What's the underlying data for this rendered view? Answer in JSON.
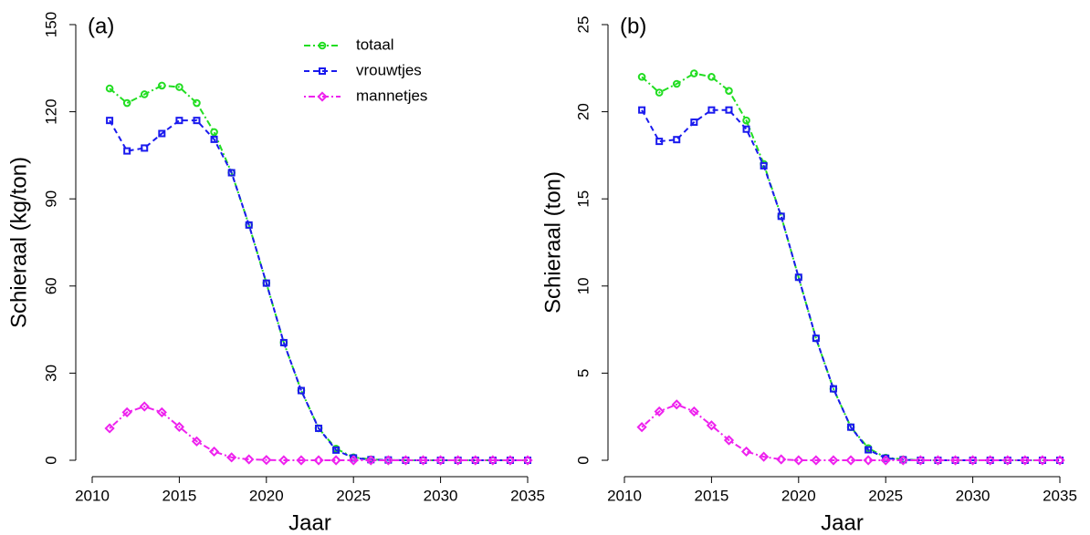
{
  "chart_data": [
    {
      "type": "line",
      "annotation": "(a)",
      "xlabel": "Jaar",
      "ylabel": "Schieraal (kg/ton)",
      "x": [
        2011,
        2012,
        2013,
        2014,
        2015,
        2016,
        2017,
        2018,
        2019,
        2020,
        2021,
        2022,
        2023,
        2024,
        2025,
        2026,
        2027,
        2028,
        2029,
        2030,
        2031,
        2032,
        2033,
        2034,
        2035
      ],
      "xlim": [
        2010,
        2035
      ],
      "xticks": [
        2010,
        2015,
        2020,
        2025,
        2030,
        2035
      ],
      "ylim": [
        0,
        150
      ],
      "yticks": [
        0,
        30,
        60,
        90,
        120,
        150
      ],
      "legend": true,
      "series": [
        {
          "name": "totaal",
          "color": "#22dd22",
          "marker": "circle",
          "dash": "7 3 2 3",
          "values": [
            128,
            123,
            126,
            129,
            128.5,
            123,
            113,
            99,
            81,
            61,
            40.5,
            24,
            11,
            4,
            1,
            0.3,
            0.1,
            0,
            0,
            0,
            0,
            0,
            0,
            0,
            0
          ]
        },
        {
          "name": "vrouwtjes",
          "color": "#1a1aee",
          "marker": "square",
          "dash": "6 4",
          "values": [
            117,
            106.5,
            107.5,
            112.5,
            117,
            117,
            110.5,
            99,
            81,
            61,
            40.5,
            24,
            11,
            3.5,
            0.8,
            0.2,
            0.1,
            0,
            0,
            0,
            0,
            0,
            0,
            0,
            0
          ]
        },
        {
          "name": "mannetjes",
          "color": "#ee22ee",
          "marker": "diamond",
          "dash": "2 3 7 3",
          "values": [
            11,
            16.5,
            18.5,
            16.5,
            11.5,
            6.5,
            3,
            1,
            0.3,
            0.1,
            0,
            0,
            0,
            0,
            0,
            0,
            0,
            0,
            0,
            0,
            0,
            0,
            0,
            0,
            0
          ]
        }
      ]
    },
    {
      "type": "line",
      "annotation": "(b)",
      "xlabel": "Jaar",
      "ylabel": "Schieraal (ton)",
      "x": [
        2011,
        2012,
        2013,
        2014,
        2015,
        2016,
        2017,
        2018,
        2019,
        2020,
        2021,
        2022,
        2023,
        2024,
        2025,
        2026,
        2027,
        2028,
        2029,
        2030,
        2031,
        2032,
        2033,
        2034,
        2035
      ],
      "xlim": [
        2010,
        2035
      ],
      "xticks": [
        2010,
        2015,
        2020,
        2025,
        2030,
        2035
      ],
      "ylim": [
        0,
        25
      ],
      "yticks": [
        0,
        5,
        10,
        15,
        20,
        25
      ],
      "legend": false,
      "series": [
        {
          "color": "#22dd22",
          "marker": "circle",
          "dash": "7 3 2 3",
          "values": [
            22,
            21.1,
            21.6,
            22.2,
            22,
            21.2,
            19.5,
            17,
            14,
            10.5,
            7,
            4.1,
            1.9,
            0.7,
            0.15,
            0.05,
            0,
            0,
            0,
            0,
            0,
            0,
            0,
            0,
            0
          ]
        },
        {
          "color": "#1a1aee",
          "marker": "square",
          "dash": "6 4",
          "values": [
            20.1,
            18.3,
            18.4,
            19.4,
            20.1,
            20.1,
            19,
            16.9,
            14,
            10.5,
            7,
            4.1,
            1.9,
            0.6,
            0.12,
            0.03,
            0,
            0,
            0,
            0,
            0,
            0,
            0,
            0,
            0
          ]
        },
        {
          "color": "#ee22ee",
          "marker": "diamond",
          "dash": "2 3 7 3",
          "values": [
            1.9,
            2.8,
            3.2,
            2.8,
            2,
            1.15,
            0.5,
            0.2,
            0.05,
            0,
            0,
            0,
            0,
            0,
            0,
            0,
            0,
            0,
            0,
            0,
            0,
            0,
            0,
            0,
            0
          ]
        }
      ]
    }
  ]
}
